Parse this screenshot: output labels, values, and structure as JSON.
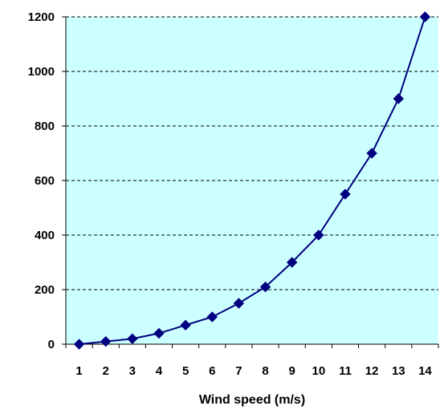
{
  "chart_data": {
    "type": "line",
    "title": "",
    "xlabel": "Wind speed (m/s)",
    "ylabel": "",
    "x": [
      1,
      2,
      3,
      4,
      5,
      6,
      7,
      8,
      9,
      10,
      11,
      12,
      13,
      14
    ],
    "series": [
      {
        "values": [
          0,
          10,
          20,
          40,
          70,
          100,
          150,
          210,
          300,
          400,
          550,
          700,
          900,
          1200
        ],
        "color": "#000080",
        "marker": "diamond"
      }
    ],
    "xlim": [
      1,
      14
    ],
    "ylim": [
      0,
      1200
    ],
    "yticks": [
      0,
      200,
      400,
      600,
      800,
      1000,
      1200
    ],
    "xticks": [
      1,
      2,
      3,
      4,
      5,
      6,
      7,
      8,
      9,
      10,
      11,
      12,
      13,
      14
    ],
    "grid": "horizontal-dashed",
    "legend": "none",
    "plot_background": "#ccffff"
  }
}
